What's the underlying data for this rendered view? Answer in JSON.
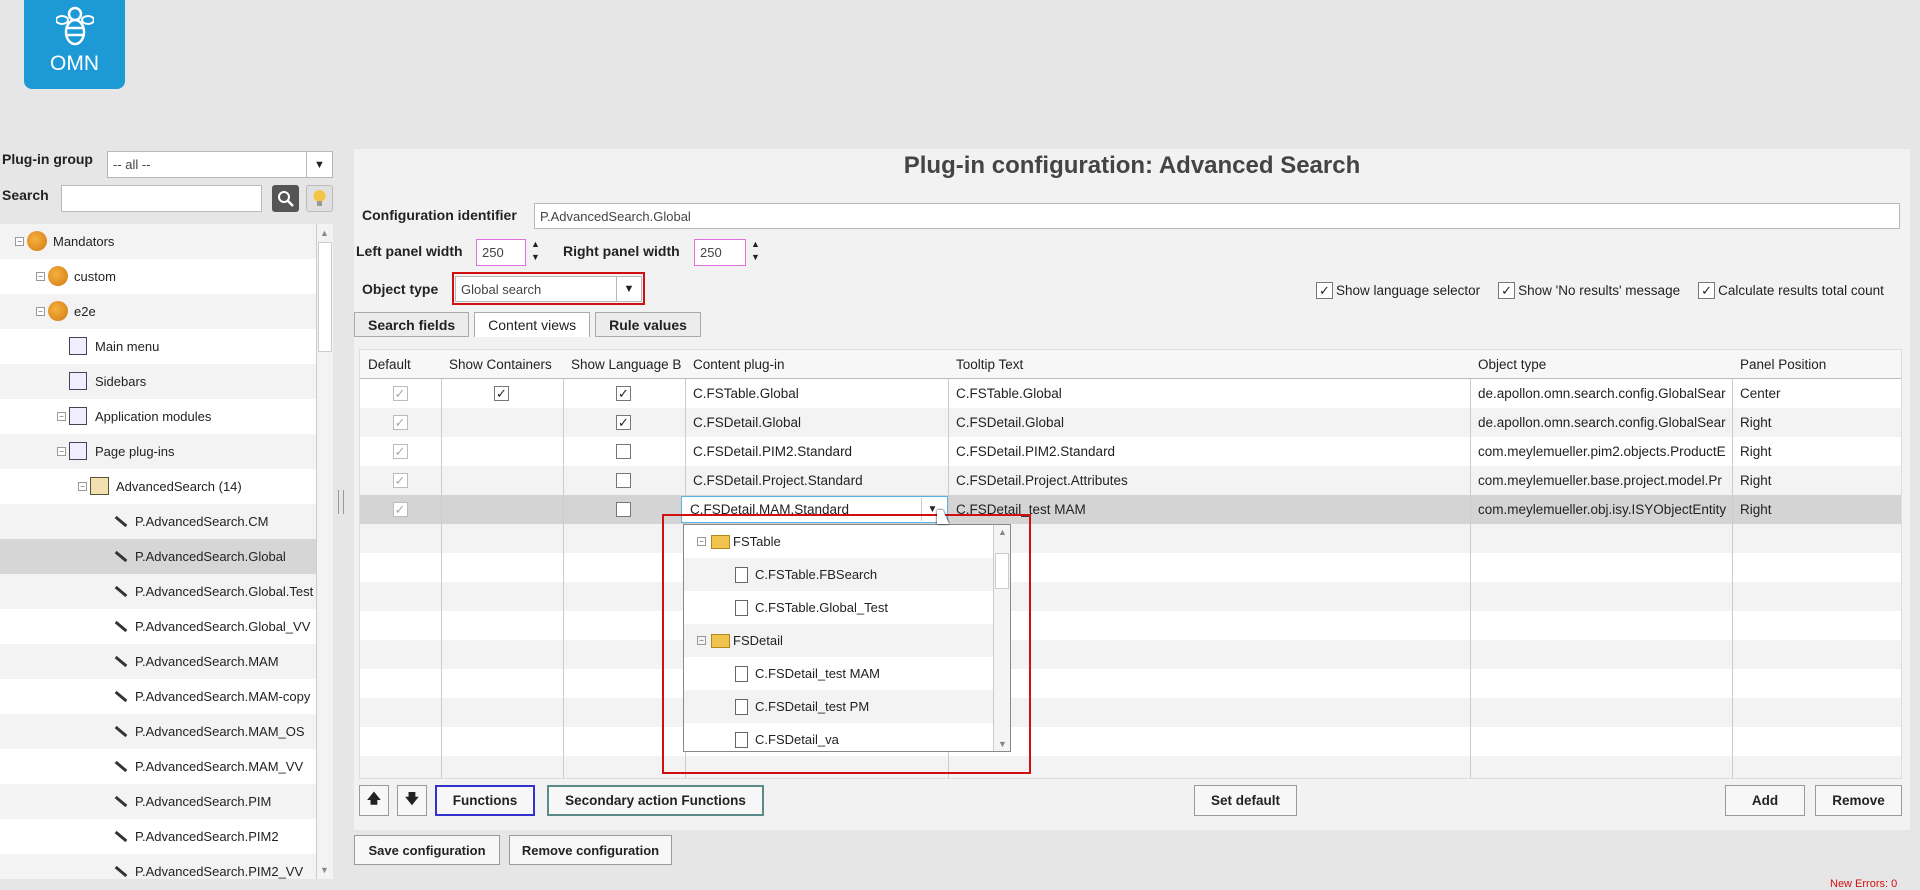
{
  "logo": {
    "text": "OMN"
  },
  "sidebar": {
    "plugin_group_label": "Plug-in group",
    "plugin_group_value": "-- all --",
    "search_label": "Search",
    "tree": [
      {
        "label": "Mandators",
        "children": [
          {
            "label": "custom",
            "children": []
          },
          {
            "label": "e2e",
            "children": [
              {
                "label": "Main menu"
              },
              {
                "label": "Sidebars"
              },
              {
                "label": "Application modules",
                "children": []
              },
              {
                "label": "Page plug-ins",
                "children": [
                  {
                    "label": "AdvancedSearch (14)",
                    "children": [
                      {
                        "label": "P.AdvancedSearch.CM"
                      },
                      {
                        "label": "P.AdvancedSearch.Global"
                      },
                      {
                        "label": "P.AdvancedSearch.Global.Test"
                      },
                      {
                        "label": "P.AdvancedSearch.Global_VV"
                      },
                      {
                        "label": "P.AdvancedSearch.MAM"
                      },
                      {
                        "label": "P.AdvancedSearch.MAM-copy"
                      },
                      {
                        "label": "P.AdvancedSearch.MAM_OS"
                      },
                      {
                        "label": "P.AdvancedSearch.MAM_VV"
                      },
                      {
                        "label": "P.AdvancedSearch.PIM"
                      },
                      {
                        "label": "P.AdvancedSearch.PIM2"
                      },
                      {
                        "label": "P.AdvancedSearch.PIM2_VV"
                      }
                    ]
                  }
                ]
              }
            ]
          }
        ]
      }
    ]
  },
  "main": {
    "title": "Plug-in configuration: Advanced Search",
    "config_id_label": "Configuration identifier",
    "config_id_value": "P.AdvancedSearch.Global",
    "left_width_label": "Left panel width",
    "left_width_value": "250",
    "right_width_label": "Right panel width",
    "right_width_value": "250",
    "object_type_label": "Object type",
    "object_type_value": "Global search",
    "options": [
      {
        "label": "Show language selector",
        "checked": true
      },
      {
        "label": "Show 'No results' message",
        "checked": true
      },
      {
        "label": "Calculate results total count",
        "checked": true
      }
    ],
    "tabs": [
      "Search fields",
      "Content views",
      "Rule values"
    ],
    "active_tab": "Content views",
    "table": {
      "columns": [
        "Default",
        "Show Containers",
        "Show Language B",
        "Content plug-in",
        "Tooltip Text",
        "Object type",
        "Panel Position"
      ],
      "rows": [
        [
          true,
          true,
          true,
          "C.FSTable.Global",
          "C.FSTable.Global",
          "de.apollon.omn.search.config.GlobalSear",
          "Center"
        ],
        [
          true,
          null,
          true,
          "C.FSDetail.Global",
          "C.FSDetail.Global",
          "de.apollon.omn.search.config.GlobalSear",
          "Right"
        ],
        [
          true,
          null,
          false,
          "C.FSDetail.PIM2.Standard",
          "C.FSDetail.PIM2.Standard",
          "com.meylemueller.pim2.objects.ProductE",
          "Right"
        ],
        [
          true,
          null,
          false,
          "C.FSDetail.Project.Standard",
          "C.FSDetail.Project.Attributes",
          "com.meylemueller.base.project.model.Pr",
          "Right"
        ],
        [
          true,
          null,
          false,
          "C.FSDetail.MAM.Standard",
          "C.FSDetail_test MAM",
          "com.meylemueller.obj.isy.ISYObjectEntity",
          "Right"
        ]
      ]
    },
    "dropdown": [
      {
        "label": "FSTable",
        "children": [
          {
            "label": "C.FSTable.FBSearch"
          },
          {
            "label": "C.FSTable.Global_Test"
          }
        ]
      },
      {
        "label": "FSDetail",
        "children": [
          {
            "label": "C.FSDetail_test MAM"
          },
          {
            "label": "C.FSDetail_test PM"
          },
          {
            "label": "C.FSDetail_va"
          }
        ]
      }
    ],
    "buttons": {
      "functions": "Functions",
      "secondary": "Secondary action Functions",
      "set_default": "Set default",
      "add": "Add",
      "remove": "Remove",
      "save": "Save configuration",
      "remove_config": "Remove configuration"
    }
  },
  "status": {
    "errors": "New Errors: 0"
  }
}
